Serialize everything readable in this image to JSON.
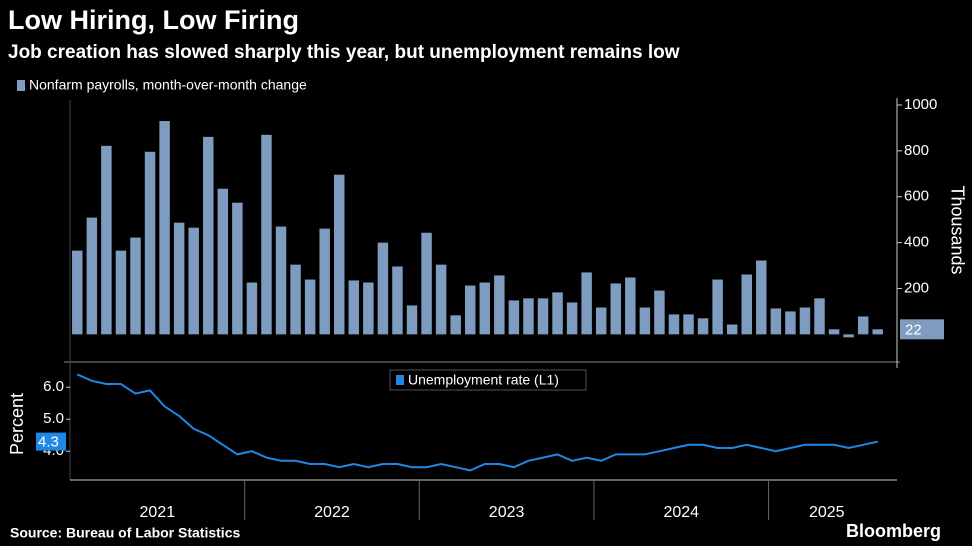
{
  "chart_data": [
    {
      "type": "bar",
      "title": "Low Hiring, Low Firing",
      "subtitle": "Job creation has slowed sharply this year, but unemployment remains low",
      "y_label": "Thousands",
      "ylim": [
        -90,
        1030
      ],
      "yticks": [
        200,
        400,
        600,
        800,
        1000
      ],
      "series": [
        {
          "name": "Nonfarm payrolls, month-over-month change",
          "color": "#7d9cbf",
          "values": [
            365,
            509,
            822,
            365,
            422,
            796,
            930,
            487,
            465,
            861,
            635,
            574,
            226,
            870,
            470,
            304,
            239,
            461,
            696,
            235,
            226,
            400,
            296,
            126,
            443,
            304,
            83,
            213,
            226,
            257,
            148,
            157,
            157,
            183,
            139,
            270,
            117,
            222,
            248,
            117,
            191,
            87,
            87,
            70,
            239,
            43,
            261,
            322,
            113,
            100,
            117,
            157,
            22,
            -13,
            78,
            22
          ]
        }
      ]
    },
    {
      "type": "line",
      "y_label": "Percent",
      "source": "Source: Bureau of Labor Statistics",
      "brand": "Bloomberg",
      "ylim": [
        3.1,
        6.6
      ],
      "yticks": [
        {
          "value": 4,
          "label": "4.0"
        },
        {
          "value": 5,
          "label": "5.0"
        },
        {
          "value": 6,
          "label": "6.0"
        }
      ],
      "categories": [
        null,
        null,
        null,
        null,
        null,
        null,
        "2021",
        null,
        null,
        null,
        null,
        null,
        null,
        null,
        null,
        null,
        null,
        null,
        "2022",
        null,
        null,
        null,
        null,
        null,
        null,
        null,
        null,
        null,
        null,
        null,
        "2023",
        null,
        null,
        null,
        null,
        null,
        null,
        null,
        null,
        null,
        null,
        null,
        "2024",
        null,
        null,
        null,
        null,
        null,
        null,
        null,
        null,
        null,
        "2025",
        null,
        null,
        null
      ],
      "series": [
        {
          "name": "Unemployment rate (L1)",
          "color": "#1f88e5",
          "values": [
            6.4,
            6.2,
            6.1,
            6.1,
            5.8,
            5.9,
            5.4,
            5.1,
            4.7,
            4.5,
            4.2,
            3.9,
            4.0,
            3.8,
            3.7,
            3.7,
            3.6,
            3.6,
            3.5,
            3.6,
            3.5,
            3.6,
            3.6,
            3.5,
            3.5,
            3.6,
            3.5,
            3.4,
            3.6,
            3.6,
            3.5,
            3.7,
            3.8,
            3.9,
            3.7,
            3.8,
            3.7,
            3.9,
            3.9,
            3.9,
            4.0,
            4.1,
            4.2,
            4.2,
            4.1,
            4.1,
            4.2,
            4.1,
            4.0,
            4.1,
            4.2,
            4.2,
            4.2,
            4.1,
            4.2,
            4.3
          ]
        }
      ]
    }
  ]
}
